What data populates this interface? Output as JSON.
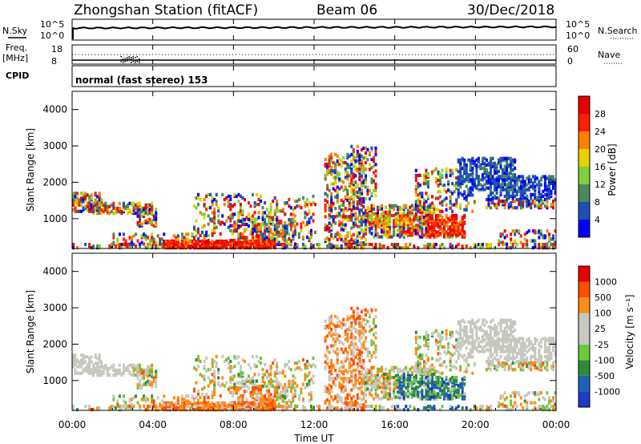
{
  "header": {
    "station": "Zhongshan Station (fitACF)",
    "beam": "Beam 06",
    "date": "30/Dec/2018"
  },
  "noise_panel": {
    "left_label": "N.Sky",
    "left_ticks": [
      "10^5",
      "10^0"
    ],
    "right_label": "N.Search",
    "right_ticks": [
      "10^5",
      "10^0"
    ]
  },
  "freq_panel": {
    "left_label_1": "Freq.",
    "left_label_2": "[MHz]",
    "left_ticks": [
      "18",
      "8"
    ],
    "right_label": "Nave",
    "right_ticks": [
      "60",
      "0"
    ]
  },
  "cpid": {
    "label": "CPID",
    "value": "normal (fast stereo) 153"
  },
  "chart_data": [
    {
      "type": "heatmap",
      "name": "power",
      "ylabel": "Slant Range [km]",
      "ylim": [
        180,
        4500
      ],
      "y_ticks": [
        "1000",
        "2000",
        "3000",
        "4000"
      ],
      "x_ticks": [
        "00:00",
        "04:00",
        "08:00",
        "12:00",
        "16:00",
        "20:00",
        "00:00"
      ],
      "xlim_hours": [
        0,
        24
      ],
      "colorbar": {
        "label": "Power [dB]",
        "ticks": [
          "4",
          "8",
          "12",
          "16",
          "20",
          "24",
          "28"
        ],
        "colors": [
          "#0000ff",
          "#1e50b4",
          "#4a8a5a",
          "#7fd23c",
          "#e6d200",
          "#ff7f00",
          "#ff1e00",
          "#e60000"
        ]
      }
    },
    {
      "type": "heatmap",
      "name": "velocity",
      "ylabel": "Slant Range [km]",
      "ylim": [
        180,
        4500
      ],
      "y_ticks": [
        "1000",
        "2000",
        "3000",
        "4000"
      ],
      "x_ticks": [
        "00:00",
        "04:00",
        "08:00",
        "12:00",
        "16:00",
        "20:00",
        "00:00"
      ],
      "xlabel": "Time UT",
      "xlim_hours": [
        0,
        24
      ],
      "colorbar": {
        "label": "Velocity [m s⁻¹]",
        "ticks": [
          "1000",
          "500",
          "100",
          "25",
          "-25",
          "-100",
          "-500",
          "-1000"
        ],
        "colors": [
          "#1e3cc8",
          "#1e64b4",
          "#2e8b3a",
          "#6ec83c",
          "#c8c8c0",
          "#c8c8c0",
          "#ff8c14",
          "#ff5000",
          "#e60000"
        ]
      }
    }
  ]
}
